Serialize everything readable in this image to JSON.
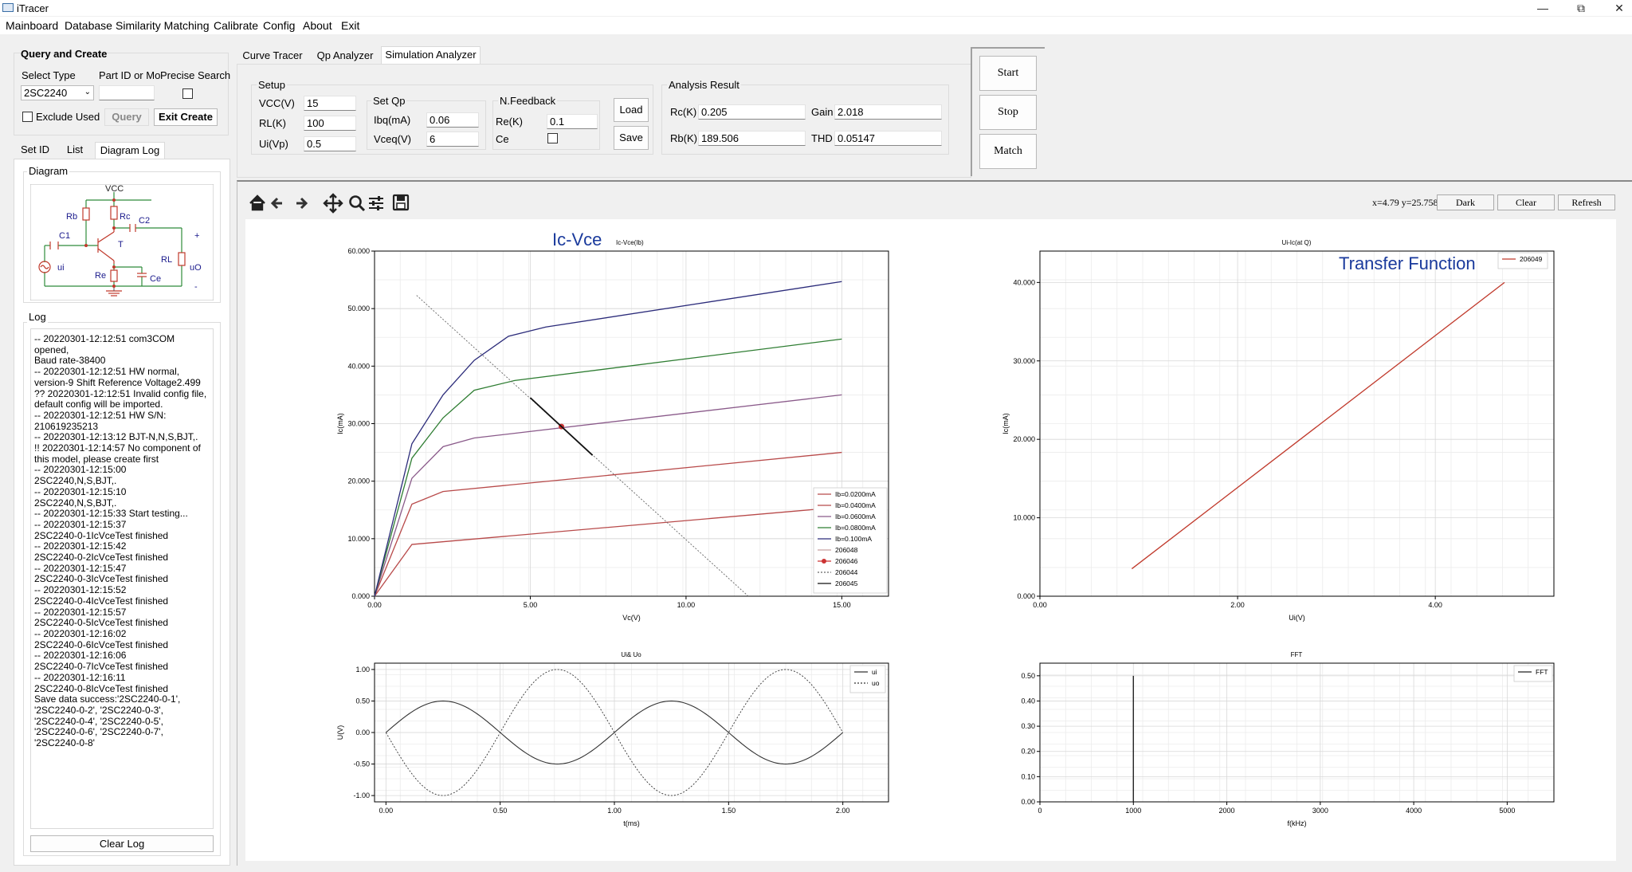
{
  "window": {
    "title": "iTracer",
    "minimize_icon": "minimize-icon",
    "restore_icon": "restore-icon",
    "close_icon": "close-icon"
  },
  "menu": [
    "Mainboard",
    "Database",
    "Similarity Matching",
    "Calibrate",
    "Config",
    "About",
    "Exit"
  ],
  "query": {
    "title": "Query and Create",
    "select_type_label": "Select Type",
    "part_id_label": "Part ID or Mo",
    "precise_label": "Precise Search",
    "select_type_value": "2SC2240",
    "part_id_value": "",
    "exclude_used_label": "Exclude Used",
    "query_button": "Query",
    "exit_create_button": "Exit Create"
  },
  "left_tabs": [
    "Set ID",
    "List",
    "Diagram",
    "Log"
  ],
  "diagram": {
    "title": "Diagram",
    "labels": {
      "vcc": "VCC",
      "rb": "Rb",
      "rc": "Rc",
      "c1": "C1",
      "c2": "C2",
      "t": "T",
      "re": "Re",
      "ce": "Ce",
      "rl": "RL",
      "ui": "ui",
      "uo": "uO",
      "plus": "+",
      "minus": "-"
    }
  },
  "log": {
    "title": "Log",
    "lines": [
      "-- 20220301-12:12:51 com3COM opened,",
      "Baud rate-38400",
      "-- 20220301-12:12:51 HW normal,",
      "version-9 Shift Reference Voltage2.499",
      "?? 20220301-12:12:51 Invalid config file,",
      "default config will be imported.",
      "-- 20220301-12:12:51 HW S/N:",
      "210619235213",
      "-- 20220301-12:13:12 BJT-N,N,S,BJT,.",
      "!! 20220301-12:14:57 No component of",
      "this model, please create first",
      "-- 20220301-12:15:00 2SC2240,N,S,BJT,.",
      "-- 20220301-12:15:10 2SC2240,N,S,BJT,.",
      "-- 20220301-12:15:33 Start testing...",
      "-- 20220301-12:15:37",
      "2SC2240-0-1IcVceTest finished",
      "-- 20220301-12:15:42",
      "2SC2240-0-2IcVceTest finished",
      "-- 20220301-12:15:47",
      "2SC2240-0-3IcVceTest finished",
      "-- 20220301-12:15:52",
      "2SC2240-0-4IcVceTest finished",
      "-- 20220301-12:15:57",
      "2SC2240-0-5IcVceTest finished",
      "-- 20220301-12:16:02",
      "2SC2240-0-6IcVceTest finished",
      "-- 20220301-12:16:06",
      "2SC2240-0-7IcVceTest finished",
      "-- 20220301-12:16:11",
      "2SC2240-0-8IcVceTest finished",
      "Save data success:'2SC2240-0-1',",
      "'2SC2240-0-2', '2SC2240-0-3',",
      "'2SC2240-0-4', '2SC2240-0-5',",
      "'2SC2240-0-6', '2SC2240-0-7',",
      "'2SC2240-0-8'"
    ],
    "clear_button": "Clear Log"
  },
  "main_tabs": [
    "Curve Tracer",
    "Qp Analyzer",
    "Simulation Analyzer"
  ],
  "setup": {
    "title": "Setup",
    "vcc_label": "VCC(V)",
    "vcc_value": "15",
    "rl_label": "RL(K)",
    "rl_value": "100",
    "ui_label": "Ui(Vp)",
    "ui_value": "0.5"
  },
  "setqp": {
    "title": "Set Qp",
    "ibq_label": "Ibq(mA)",
    "ibq_value": "0.06",
    "vceq_label": "Vceq(V)",
    "vceq_value": "6"
  },
  "feedback": {
    "title": "N.Feedback",
    "re_label": "Re(K)",
    "re_value": "0.1",
    "ce_label": "Ce"
  },
  "file_buttons": {
    "load": "Load",
    "save": "Save"
  },
  "analysis": {
    "title": "Analysis Result",
    "rc_label": "Rc(K)",
    "rc_value": "0.205",
    "gain_label": "Gain",
    "gain_value": "2.018",
    "rb_label": "Rb(K)",
    "rb_value": "189.506",
    "thd_label": "THD",
    "thd_value": "0.05147"
  },
  "control_buttons": {
    "start": "Start",
    "stop": "Stop",
    "match": "Match"
  },
  "toolbar": {
    "icons": [
      "home-icon",
      "back-arrow-icon",
      "forward-arrow-icon",
      "pan-icon",
      "zoom-icon",
      "configure-icon",
      "save-icon"
    ],
    "coords": "x=4.79 y=25.758",
    "dark_button": "Dark",
    "clear_button": "Clear",
    "refresh_button": "Refresh"
  },
  "chart_data": [
    {
      "type": "line",
      "title": "Ic-Vce",
      "subtitle": "Ic-Vce(Ib)",
      "xlabel": "Vc(V)",
      "ylabel": "Ic(mA)",
      "xlim": [
        0,
        16.5
      ],
      "ylim": [
        0,
        60
      ],
      "xticks": [
        "0.00",
        "5.00",
        "10.00",
        "15.00"
      ],
      "yticks": [
        "0.000",
        "10.000",
        "20.000",
        "30.000",
        "40.000",
        "50.000",
        "60.000"
      ],
      "grid": true,
      "legend": "bottom-right",
      "series": [
        {
          "name": "Ib=0.0200mA",
          "color": "#b84a4a",
          "x": [
            0,
            1.2,
            15
          ],
          "y": [
            0,
            9,
            15.5
          ]
        },
        {
          "name": "Ib=0.0400mA",
          "color": "#b84a4a",
          "x": [
            0,
            1.2,
            2.2,
            15
          ],
          "y": [
            0,
            16,
            18.2,
            25
          ]
        },
        {
          "name": "Ib=0.0600mA",
          "color": "#8a5a8a",
          "x": [
            0,
            1.2,
            2.2,
            3.2,
            15
          ],
          "y": [
            0,
            20.5,
            26,
            27.5,
            35
          ]
        },
        {
          "name": "Ib=0.0800mA",
          "color": "#2e7d32",
          "x": [
            0,
            1.2,
            2.2,
            3.2,
            4.5,
            15
          ],
          "y": [
            0,
            24,
            31,
            35.8,
            37.5,
            44.7
          ]
        },
        {
          "name": "Ib=0.100mA",
          "color": "#2b2b7a",
          "x": [
            0,
            1.2,
            2.2,
            3.2,
            4.3,
            5.5,
            15
          ],
          "y": [
            0,
            26.5,
            35,
            41,
            45.2,
            46.8,
            54.7
          ]
        },
        {
          "name": "206048",
          "color": "#c8a0a0",
          "x": [],
          "y": []
        },
        {
          "name": "206046",
          "color": "#cc3333",
          "marker": true,
          "x": [
            6
          ],
          "y": [
            29.5
          ]
        },
        {
          "name": "206044",
          "color": "#666666",
          "dashed": true,
          "x": [
            1.35,
            12
          ],
          "y": [
            52.3,
            0
          ]
        },
        {
          "name": "206045",
          "color": "#111111",
          "x": [
            5,
            7
          ],
          "y": [
            34.5,
            24.5
          ]
        }
      ]
    },
    {
      "type": "line",
      "title": "Ui-Ic(at Q)",
      "annotation": "Transfer Function",
      "xlabel": "Ui(V)",
      "ylabel": "Ic(mA)",
      "xlim": [
        0,
        5.2
      ],
      "ylim": [
        0,
        44
      ],
      "xticks": [
        "0.00",
        "2.00",
        "4.00"
      ],
      "yticks": [
        "0.000",
        "10.000",
        "20.000",
        "30.000",
        "40.000"
      ],
      "grid": true,
      "legend": "top-right",
      "series": [
        {
          "name": "206049",
          "color": "#c0392b",
          "x": [
            0.93,
            4.7
          ],
          "y": [
            3.5,
            40
          ]
        }
      ]
    },
    {
      "type": "line",
      "title": "Ui& Uo",
      "xlabel": "t(ms)",
      "ylabel": "U(V)",
      "xlim": [
        -0.05,
        2.2
      ],
      "ylim": [
        -1.1,
        1.1
      ],
      "xticks": [
        "0.00",
        "0.50",
        "1.00",
        "1.50",
        "2.00"
      ],
      "yticks": [
        "-1.00",
        "-0.50",
        "0.00",
        "0.50",
        "1.00"
      ],
      "grid": true,
      "legend": "top-right",
      "series": [
        {
          "name": "ui",
          "color": "#333333",
          "amplitude": 0.5,
          "freq_khz": 1,
          "sign": 1
        },
        {
          "name": "uo",
          "color": "#333333",
          "dashed": true,
          "amplitude": 1.0,
          "freq_khz": 1,
          "sign": -1
        }
      ]
    },
    {
      "type": "bar",
      "title": "FFT",
      "xlabel": "f(kHz)",
      "ylabel": "",
      "xlim": [
        0,
        5500
      ],
      "ylim": [
        0,
        0.55
      ],
      "xticks": [
        "0",
        "1000",
        "2000",
        "3000",
        "4000",
        "5000"
      ],
      "yticks": [
        "0.00",
        "0.10",
        "0.20",
        "0.30",
        "0.40",
        "0.50"
      ],
      "grid": true,
      "legend": "top-right",
      "series": [
        {
          "name": "FFT",
          "color": "#222222",
          "x": [
            1000
          ],
          "y": [
            0.5
          ]
        }
      ]
    }
  ]
}
